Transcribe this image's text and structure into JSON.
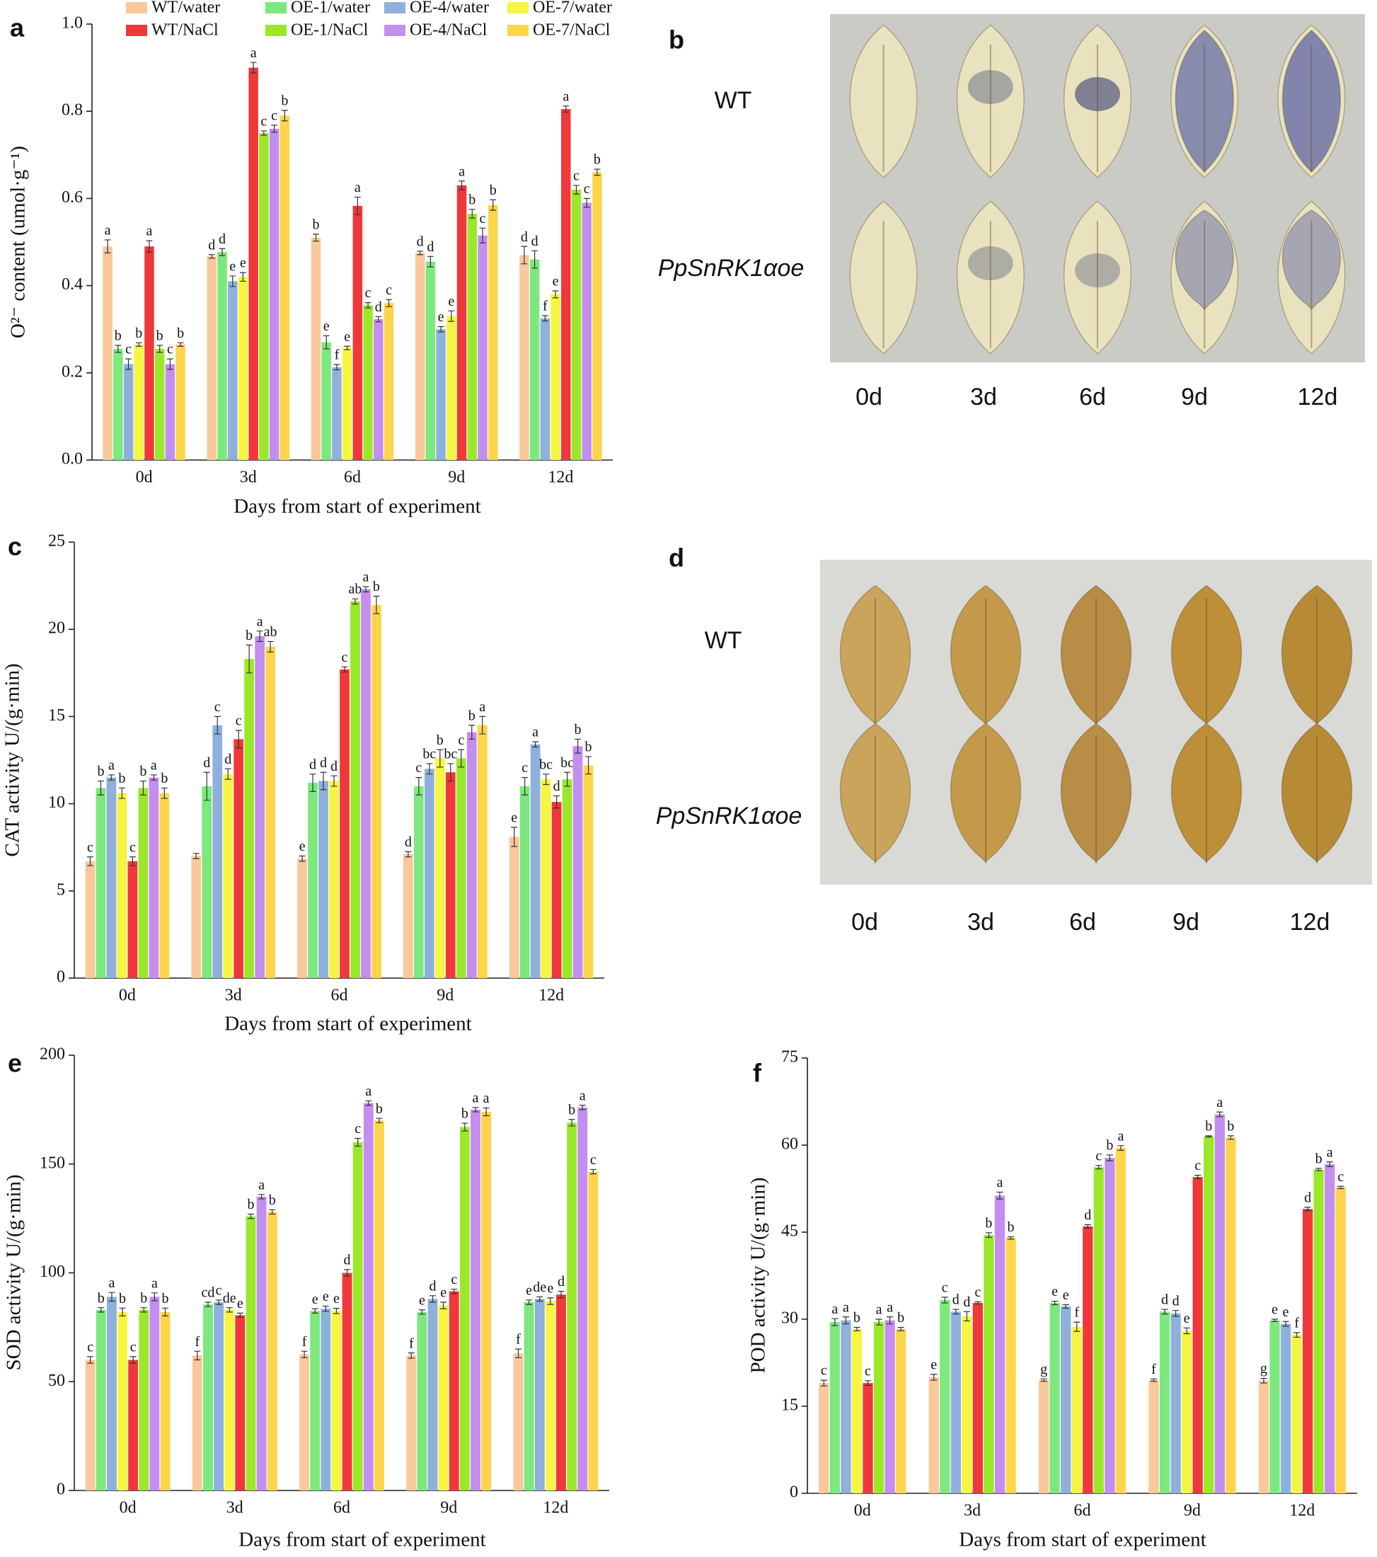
{
  "chart_data": [
    {
      "type": "bar",
      "panel": "a",
      "legend": "top",
      "y_label": "O²⁻ content (umol·g⁻¹)",
      "x_label": "Days from start of experiment",
      "categories": [
        "0d",
        "3d",
        "6d",
        "9d",
        "12d"
      ],
      "ylim": [
        0,
        1
      ],
      "yticks": [
        {
          "value": 0,
          "label": "0.0"
        },
        0.2,
        0.4,
        0.6,
        0.8,
        {
          "value": 1,
          "label": "1.0"
        }
      ],
      "series": [
        {
          "name": "WT/water",
          "color": "#f9c89b",
          "values": [
            0.49,
            0.467,
            0.51,
            0.475,
            0.47
          ],
          "errors": [
            0.015,
            0.004,
            0.008,
            0.004,
            0.02
          ],
          "letters": [
            "a",
            "d",
            "b",
            "d",
            "d"
          ]
        },
        {
          "name": "OE-1/water",
          "color": "#7de87d",
          "values": [
            0.255,
            0.477,
            0.27,
            0.455,
            0.46
          ],
          "errors": [
            0.008,
            0.008,
            0.015,
            0.012,
            0.02
          ],
          "letters": [
            "b",
            "d",
            "e",
            "d",
            "d"
          ]
        },
        {
          "name": "OE-4/water",
          "color": "#8fb0dc",
          "values": [
            0.22,
            0.41,
            0.213,
            0.3,
            0.325
          ],
          "errors": [
            0.012,
            0.012,
            0.006,
            0.006,
            0.006
          ],
          "letters": [
            "c",
            "e",
            "f",
            "e",
            "f"
          ]
        },
        {
          "name": "OE-7/water",
          "color": "#f5f542",
          "values": [
            0.265,
            0.42,
            0.257,
            0.33,
            0.38
          ],
          "errors": [
            0.004,
            0.01,
            0.004,
            0.012,
            0.008
          ],
          "letters": [
            "b",
            "e",
            "e",
            "e",
            "e"
          ]
        },
        {
          "name": "WT/NaCl",
          "color": "#f0383a",
          "values": [
            0.49,
            0.9,
            0.583,
            0.63,
            0.805
          ],
          "errors": [
            0.013,
            0.012,
            0.02,
            0.01,
            0.007
          ],
          "letters": [
            "a",
            "a",
            "a",
            "a",
            "a"
          ]
        },
        {
          "name": "OE-1/NaCl",
          "color": "#9be82b",
          "values": [
            0.255,
            0.75,
            0.355,
            0.565,
            0.62
          ],
          "errors": [
            0.008,
            0.005,
            0.006,
            0.01,
            0.01
          ],
          "letters": [
            "b",
            "c",
            "c",
            "b",
            "c"
          ]
        },
        {
          "name": "OE-4/NaCl",
          "color": "#c38ef0",
          "values": [
            0.22,
            0.76,
            0.323,
            0.515,
            0.59
          ],
          "errors": [
            0.012,
            0.008,
            0.006,
            0.017,
            0.01
          ],
          "letters": [
            "c",
            "c",
            "d",
            "c",
            "c"
          ]
        },
        {
          "name": "OE-7/NaCl",
          "color": "#fcd54a",
          "values": [
            0.265,
            0.79,
            0.36,
            0.585,
            0.66
          ],
          "errors": [
            0.004,
            0.012,
            0.008,
            0.012,
            0.007
          ],
          "letters": [
            "b",
            "b",
            "c",
            "b",
            "b"
          ]
        }
      ]
    },
    {
      "type": "bar",
      "panel": "c",
      "y_label": "CAT activity  U/(g·min)",
      "x_label": "Days from start of experiment",
      "categories": [
        "0d",
        "3d",
        "6d",
        "9d",
        "12d"
      ],
      "ylim": [
        0,
        25
      ],
      "yticks": [
        0,
        5,
        10,
        15,
        20,
        25
      ],
      "series": [
        {
          "color": "#f9c89b",
          "values": [
            6.7,
            7.0,
            6.85,
            7.1,
            8.1
          ],
          "errors": [
            0.25,
            0.15,
            0.15,
            0.15,
            0.55
          ],
          "letters": [
            "c",
            null,
            "e",
            "d",
            "e"
          ]
        },
        {
          "color": "#7de87d",
          "values": [
            10.9,
            11.0,
            11.2,
            11.0,
            11.0
          ],
          "errors": [
            0.4,
            0.8,
            0.5,
            0.5,
            0.5
          ],
          "letters": [
            "b",
            "d",
            "d",
            "c",
            "c"
          ]
        },
        {
          "color": "#8fb0dc",
          "values": [
            11.5,
            14.5,
            11.3,
            12.0,
            13.4
          ],
          "errors": [
            0.15,
            0.5,
            0.5,
            0.3,
            0.15
          ],
          "letters": [
            "a",
            "c",
            "d",
            "bc",
            "a"
          ]
        },
        {
          "color": "#f5f542",
          "values": [
            10.6,
            11.7,
            11.3,
            12.6,
            11.4
          ],
          "errors": [
            0.3,
            0.3,
            0.3,
            0.5,
            0.3
          ],
          "letters": [
            "b",
            "d",
            "d",
            "b",
            "bc"
          ]
        },
        {
          "color": "#f0383a",
          "values": [
            6.7,
            13.7,
            17.7,
            11.8,
            10.1
          ],
          "errors": [
            0.25,
            0.5,
            0.15,
            0.5,
            0.35
          ],
          "letters": [
            "c",
            "c",
            "c",
            "bc",
            "d"
          ]
        },
        {
          "color": "#9be82b",
          "values": [
            10.9,
            18.3,
            21.6,
            12.6,
            11.4
          ],
          "errors": [
            0.4,
            0.8,
            0.15,
            0.5,
            0.4
          ],
          "letters": [
            "b",
            "b",
            "ab",
            "c",
            "bc"
          ]
        },
        {
          "color": "#c38ef0",
          "values": [
            11.5,
            19.6,
            22.3,
            14.1,
            13.3
          ],
          "errors": [
            0.15,
            0.3,
            0.15,
            0.4,
            0.4
          ],
          "letters": [
            "a",
            "a",
            "a",
            "b",
            "b"
          ]
        },
        {
          "color": "#fcd54a",
          "values": [
            10.6,
            19.0,
            21.4,
            14.5,
            12.2
          ],
          "errors": [
            0.3,
            0.3,
            0.5,
            0.5,
            0.5
          ],
          "letters": [
            "b",
            "ab",
            "b",
            "a",
            "b"
          ]
        }
      ]
    },
    {
      "type": "bar",
      "panel": "e",
      "y_label": "SOD activity  U/(g·min)",
      "x_label": "Days from start of experiment",
      "categories": [
        "0d",
        "3d",
        "6d",
        "9d",
        "12d"
      ],
      "ylim": [
        0,
        200
      ],
      "yticks": [
        0,
        50,
        100,
        150,
        200
      ],
      "series": [
        {
          "color": "#f9c89b",
          "values": [
            60,
            62,
            62.5,
            62,
            63
          ],
          "errors": [
            1.5,
            2,
            1.5,
            1.2,
            2
          ],
          "letters": [
            "c",
            "f",
            "f",
            "f",
            "f"
          ]
        },
        {
          "color": "#7de87d",
          "values": [
            83,
            85.5,
            82.5,
            82,
            86.5
          ],
          "errors": [
            1,
            1,
            1,
            1,
            1
          ],
          "letters": [
            "b",
            "cd",
            "e",
            "e",
            "e"
          ]
        },
        {
          "color": "#8fb0dc",
          "values": [
            89,
            86.5,
            83.5,
            88,
            88
          ],
          "errors": [
            2,
            1,
            1.2,
            1.5,
            1
          ],
          "letters": [
            "a",
            "c",
            "e",
            "d",
            "de"
          ]
        },
        {
          "color": "#f5f542",
          "values": [
            82,
            83,
            82.5,
            85,
            87
          ],
          "errors": [
            1.8,
            1,
            1.2,
            1.5,
            1.5
          ],
          "letters": [
            "b",
            "de",
            "e",
            "e",
            "e"
          ]
        },
        {
          "color": "#f0383a",
          "values": [
            60,
            80.5,
            100,
            91.5,
            90
          ],
          "errors": [
            1.5,
            1,
            1.5,
            1,
            1.5
          ],
          "letters": [
            "c",
            "e",
            "d",
            "c",
            "d"
          ]
        },
        {
          "color": "#9be82b",
          "values": [
            83,
            126,
            160,
            167,
            169
          ],
          "errors": [
            1,
            1,
            1.8,
            1.8,
            1.5
          ],
          "letters": [
            "b",
            "b",
            "c",
            "b",
            "b"
          ]
        },
        {
          "color": "#c38ef0",
          "values": [
            89,
            135,
            178,
            175,
            176
          ],
          "errors": [
            1.8,
            1,
            1,
            1,
            1
          ],
          "letters": [
            "a",
            "a",
            "a",
            "a",
            "a"
          ]
        },
        {
          "color": "#fcd54a",
          "values": [
            82,
            128,
            170,
            174,
            146.5
          ],
          "errors": [
            1.8,
            1,
            1,
            1.8,
            1
          ],
          "letters": [
            "b",
            "b",
            "b",
            "a",
            "c"
          ]
        }
      ]
    },
    {
      "type": "bar",
      "panel": "f",
      "y_label": "POD activity U/(g·min)",
      "x_label": "Days from start of experiment",
      "categories": [
        "0d",
        "3d",
        "6d",
        "9d",
        "12d"
      ],
      "ylim": [
        0,
        75
      ],
      "yticks": [
        0,
        15,
        30,
        45,
        60,
        75
      ],
      "series": [
        {
          "color": "#f9c89b",
          "values": [
            19,
            20,
            19.5,
            19.5,
            19.4
          ],
          "errors": [
            0.5,
            0.5,
            0.2,
            0.2,
            0.4
          ],
          "letters": [
            "c",
            "e",
            "g",
            "f",
            "g"
          ]
        },
        {
          "color": "#7de87d",
          "values": [
            29.5,
            33.3,
            32.8,
            31.3,
            29.8
          ],
          "errors": [
            0.6,
            0.5,
            0.3,
            0.4,
            0.2
          ],
          "letters": [
            "a",
            "c",
            "e",
            "d",
            "e"
          ]
        },
        {
          "color": "#8fb0dc",
          "values": [
            29.8,
            31.3,
            32.2,
            31.0,
            29.2
          ],
          "errors": [
            0.6,
            0.4,
            0.3,
            0.5,
            0.4
          ],
          "letters": [
            "a",
            "d",
            "e",
            "d",
            "e"
          ]
        },
        {
          "color": "#f5f542",
          "values": [
            28.3,
            30.5,
            28.7,
            28,
            27.3
          ],
          "errors": [
            0.3,
            0.8,
            0.8,
            0.5,
            0.4
          ],
          "letters": [
            "b",
            "d",
            "f",
            "e",
            "f"
          ]
        },
        {
          "color": "#f0383a",
          "values": [
            19,
            32.8,
            46,
            54.5,
            49
          ],
          "errors": [
            0.4,
            0.2,
            0.3,
            0.3,
            0.3
          ],
          "letters": [
            "c",
            "c",
            "d",
            "c",
            "d"
          ]
        },
        {
          "color": "#9be82b",
          "values": [
            29.5,
            44.5,
            56.2,
            61.5,
            55.8
          ],
          "errors": [
            0.5,
            0.4,
            0.3,
            0.1,
            0.2
          ],
          "letters": [
            "a",
            "b",
            "c",
            "b",
            "b"
          ]
        },
        {
          "color": "#c38ef0",
          "values": [
            29.8,
            51.3,
            57.8,
            65.3,
            56.7
          ],
          "errors": [
            0.6,
            0.6,
            0.5,
            0.4,
            0.4
          ],
          "letters": [
            "a",
            "a",
            "b",
            "a",
            "a"
          ]
        },
        {
          "color": "#fcd54a",
          "values": [
            28.3,
            44.0,
            59.5,
            61.3,
            52.7
          ],
          "errors": [
            0.3,
            0.2,
            0.4,
            0.3,
            0.2
          ],
          "letters": [
            "b",
            "b",
            "a",
            "b",
            "c"
          ]
        }
      ]
    }
  ],
  "photos": [
    {
      "panel": "b",
      "rows": [
        "WT",
        "PpSnRK1αoe"
      ],
      "days": [
        "0d",
        "3d",
        "6d",
        "9d",
        "12d"
      ]
    },
    {
      "panel": "d",
      "rows": [
        "WT",
        "PpSnRK1αoe"
      ],
      "days": [
        "0d",
        "3d",
        "6d",
        "9d",
        "12d"
      ]
    }
  ]
}
